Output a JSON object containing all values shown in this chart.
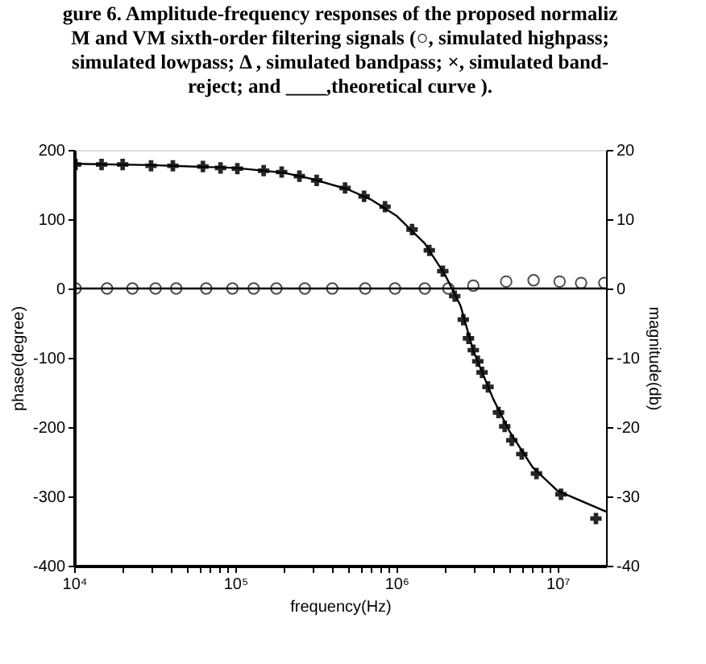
{
  "chart_data": {
    "type": "scatter",
    "title": "gure 6. Amplitude-frequency responses of the proposed normaliz\nM and VM sixth-order filtering signals (○,  simulated highpass;\nsimulated lowpass;  Δ , simulated bandpass; ×, simulated band-\nreject; and ____,theoretical curve ).",
    "xlabel": "frequency(Hz)",
    "ylabel": "phase(degree)",
    "y2label": "magnitude(db)",
    "log": "x",
    "grid": false,
    "legend": false,
    "xlim": [
      10000,
      20000000
    ],
    "xticks": [
      {
        "value": 10000,
        "label": "10⁴"
      },
      {
        "value": 20000,
        "label": null
      },
      {
        "value": 30000,
        "label": null
      },
      {
        "value": 40000,
        "label": null
      },
      {
        "value": 50000,
        "label": null
      },
      {
        "value": 60000,
        "label": null
      },
      {
        "value": 70000,
        "label": null
      },
      {
        "value": 80000,
        "label": null
      },
      {
        "value": 90000,
        "label": null
      },
      {
        "value": 100000,
        "label": "10⁵"
      },
      {
        "value": 200000,
        "label": null
      },
      {
        "value": 300000,
        "label": null
      },
      {
        "value": 400000,
        "label": null
      },
      {
        "value": 500000,
        "label": null
      },
      {
        "value": 600000,
        "label": null
      },
      {
        "value": 700000,
        "label": null
      },
      {
        "value": 800000,
        "label": null
      },
      {
        "value": 900000,
        "label": null
      },
      {
        "value": 1000000,
        "label": "10⁶"
      },
      {
        "value": 2000000,
        "label": null
      },
      {
        "value": 3000000,
        "label": null
      },
      {
        "value": 4000000,
        "label": null
      },
      {
        "value": 5000000,
        "label": null
      },
      {
        "value": 6000000,
        "label": null
      },
      {
        "value": 7000000,
        "label": null
      },
      {
        "value": 8000000,
        "label": null
      },
      {
        "value": 9000000,
        "label": null
      },
      {
        "value": 10000000,
        "label": "10⁷"
      }
    ],
    "ylim": [
      -400,
      200
    ],
    "yticks": [
      -400,
      -300,
      -200,
      -100,
      0,
      100,
      200
    ],
    "y2lim": [
      -40,
      20
    ],
    "y2ticks": [
      -40,
      -30,
      -20,
      -10,
      0,
      10,
      20
    ],
    "series": [
      {
        "marker": "cross",
        "color": "#000000",
        "x": [
          10200,
          14800,
          20000,
          30000,
          41000,
          63000,
          81000,
          103000,
          150000,
          194000,
          250000,
          320000,
          480000,
          630000,
          850000,
          1250000,
          1600000,
          1940000,
          2300000,
          2600000,
          2800000,
          3000000,
          3200000,
          3400000,
          3700000,
          4300000,
          4700000,
          5200000,
          6000000,
          7400000,
          10500000,
          17300000
        ],
        "values": [
          179,
          179,
          179,
          177,
          177,
          176,
          174,
          173,
          170,
          168,
          162,
          156,
          145,
          133,
          118,
          85,
          55,
          25,
          -11,
          -45,
          -72,
          -89,
          -105,
          -121,
          -142,
          -179,
          -199,
          -219,
          -239,
          -267,
          -297,
          -332
        ]
      },
      {
        "type": "line",
        "marker": "none",
        "line_style": "solid",
        "color": "#000000",
        "x": [
          10000,
          30000,
          100000,
          200000,
          300000,
          500000,
          700000,
          1000000,
          1500000,
          2000000,
          2500000,
          3000000,
          4000000,
          5000000,
          7000000,
          10000000,
          20000000
        ],
        "values": [
          180,
          178,
          174,
          167,
          158,
          143,
          128,
          105,
          65,
          20,
          -25,
          -90,
          -160,
          -205,
          -258,
          -292,
          -322
        ]
      },
      {
        "axis": "y2",
        "marker": "circle",
        "color": "#000000",
        "x": [
          10200,
          16000,
          23000,
          32000,
          43000,
          66000,
          96000,
          130000,
          180000,
          270000,
          400000,
          640000,
          980000,
          1500000,
          2100000,
          3000000,
          4800000,
          7100000,
          10300000,
          14000000,
          19500000
        ],
        "values": [
          0,
          0,
          0,
          0,
          0,
          0,
          0,
          0,
          0,
          0,
          0,
          0,
          0,
          0,
          0,
          0.4,
          1.0,
          1.2,
          1.0,
          0.8,
          0.8
        ]
      },
      {
        "type": "line",
        "axis": "y2",
        "marker": "none",
        "line_style": "solid",
        "color": "#000000",
        "x": [
          10000,
          20000000
        ],
        "values": [
          0,
          0
        ]
      }
    ]
  }
}
